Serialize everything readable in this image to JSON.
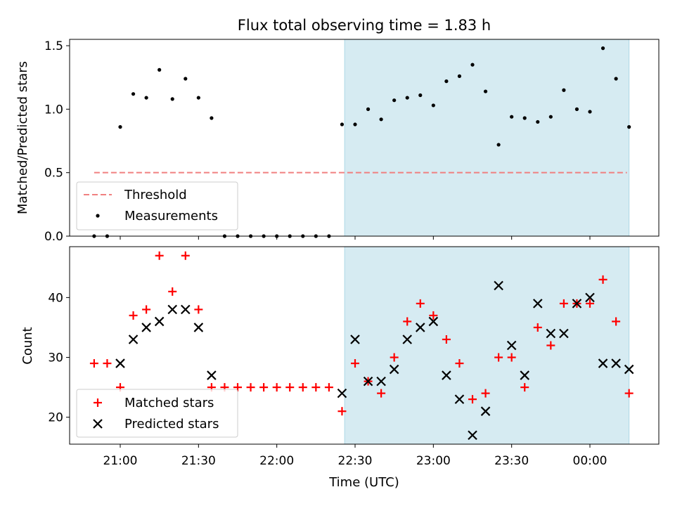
{
  "title": "Flux total observing time = 1.83 h",
  "xlabel": "Time (UTC)",
  "xticks": [
    "21:00",
    "21:30",
    "22:00",
    "22:30",
    "23:00",
    "23:30",
    "00:00"
  ],
  "colors": {
    "threshold": "#f08080",
    "measurement": "#000000",
    "matched": "#ff0000",
    "predicted": "#000000",
    "shade": "#add8e6"
  },
  "chart_data": [
    {
      "type": "scatter",
      "ylabel": "Matched/Predicted stars",
      "xlim_minutes": [
        20.5,
        1.27
      ],
      "ylim": [
        0,
        1.55
      ],
      "yticks": [
        "0.0",
        "0.5",
        "1.0",
        "1.5"
      ],
      "threshold": 0.5,
      "legend": {
        "position": "bottom-left",
        "threshold_label": "Threshold",
        "measurements_label": "Measurements"
      },
      "shaded_region": [
        "22:26",
        "00:15"
      ],
      "x": [
        "20:55",
        "21:00",
        "21:05",
        "21:10",
        "21:15",
        "21:20",
        "21:25",
        "21:30",
        "21:35",
        "21:40",
        "21:45",
        "21:50",
        "21:55",
        "22:00",
        "22:05",
        "22:10",
        "22:15",
        "22:20",
        "22:25",
        "22:30",
        "22:35",
        "22:40",
        "22:45",
        "22:50",
        "22:55",
        "23:00",
        "23:05",
        "23:10",
        "23:15",
        "23:20",
        "23:25",
        "23:30",
        "23:35",
        "23:40",
        "23:45",
        "23:50",
        "23:55",
        "00:00",
        "00:05",
        "00:10",
        "00:15"
      ],
      "y": [
        0.0,
        0.86,
        1.12,
        1.09,
        1.31,
        1.08,
        1.24,
        1.09,
        0.93,
        0.0,
        0.0,
        0.0,
        0.0,
        0.0,
        0.0,
        0.0,
        0.0,
        0.0,
        0.88,
        0.88,
        1.0,
        0.92,
        1.07,
        1.09,
        1.11,
        1.03,
        1.22,
        1.26,
        1.35,
        1.14,
        0.72,
        0.94,
        0.93,
        0.9,
        0.94,
        1.15,
        1.0,
        0.98,
        1.48,
        1.24,
        0.86
      ],
      "extra_points": [
        {
          "x": "20:50",
          "y": 0.0
        }
      ]
    },
    {
      "type": "scatter",
      "ylabel": "Count",
      "ylim": [
        15.5,
        48.5
      ],
      "yticks": [
        "20",
        "30",
        "40"
      ],
      "legend": {
        "position": "bottom-left",
        "matched_label": "Matched stars",
        "predicted_label": "Predicted stars"
      },
      "shaded_region": [
        "22:26",
        "00:15"
      ],
      "series": [
        {
          "name": "Matched stars",
          "x": [
            "20:50",
            "20:55",
            "21:00",
            "21:05",
            "21:10",
            "21:15",
            "21:20",
            "21:25",
            "21:30",
            "21:35",
            "21:40",
            "21:45",
            "21:50",
            "21:55",
            "22:00",
            "22:05",
            "22:10",
            "22:15",
            "22:20",
            "22:25",
            "22:30",
            "22:35",
            "22:40",
            "22:45",
            "22:50",
            "22:55",
            "23:00",
            "23:05",
            "23:10",
            "23:15",
            "23:20",
            "23:25",
            "23:30",
            "23:35",
            "23:40",
            "23:45",
            "23:50",
            "23:55",
            "00:00",
            "00:05",
            "00:10",
            "00:15"
          ],
          "y": [
            29,
            29,
            25,
            37,
            38,
            47,
            41,
            47,
            38,
            25,
            25,
            25,
            25,
            25,
            25,
            25,
            25,
            25,
            25,
            21,
            29,
            26,
            24,
            30,
            36,
            39,
            37,
            33,
            29,
            23,
            24,
            30,
            30,
            25,
            35,
            32,
            39,
            39,
            39,
            43,
            36,
            24
          ]
        },
        {
          "name": "Predicted stars",
          "x": [
            "21:00",
            "21:05",
            "21:10",
            "21:15",
            "21:20",
            "21:25",
            "21:30",
            "21:35",
            "22:25",
            "22:30",
            "22:35",
            "22:40",
            "22:45",
            "22:50",
            "22:55",
            "23:00",
            "23:05",
            "23:10",
            "23:15",
            "23:20",
            "23:25",
            "23:30",
            "23:35",
            "23:40",
            "23:45",
            "23:50",
            "23:55",
            "00:00",
            "00:05",
            "00:10",
            "00:15"
          ],
          "y": [
            29,
            33,
            35,
            36,
            38,
            38,
            35,
            27,
            24,
            33,
            26,
            26,
            28,
            33,
            35,
            36,
            27,
            23,
            17,
            21,
            42,
            32,
            27,
            39,
            34,
            34,
            39,
            40,
            29,
            29,
            28
          ]
        }
      ]
    }
  ]
}
